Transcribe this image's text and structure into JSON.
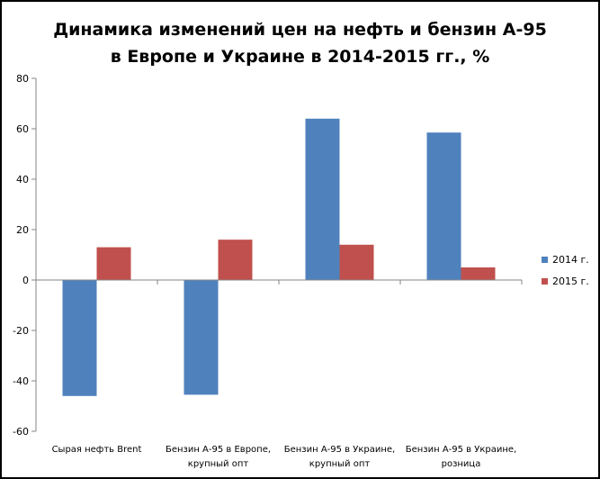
{
  "chart_data": {
    "type": "bar",
    "title_lines": [
      "Динамика изменений цен на нефть и бензин А-95",
      "в Европе и Украине в 2014-2015 гг., %"
    ],
    "categories": [
      [
        "Сырая нефть Brent"
      ],
      [
        "Бензин А-95 в Европе,",
        "крупный опт"
      ],
      [
        "Бензин А-95 в Украине,",
        "крупный опт"
      ],
      [
        "Бензин А-95 в Украине,",
        "розница"
      ]
    ],
    "series": [
      {
        "name": "2014 г.",
        "color": "#4f81bd",
        "values": [
          -46,
          -45.5,
          64,
          58.5
        ]
      },
      {
        "name": "2015 г.",
        "color": "#c0504d",
        "values": [
          13,
          16,
          14,
          5
        ]
      }
    ],
    "ylim": [
      -60,
      80
    ],
    "yticks": [
      -60,
      -40,
      -20,
      0,
      20,
      40,
      60,
      80
    ],
    "grid": false,
    "legend_position": "right"
  }
}
